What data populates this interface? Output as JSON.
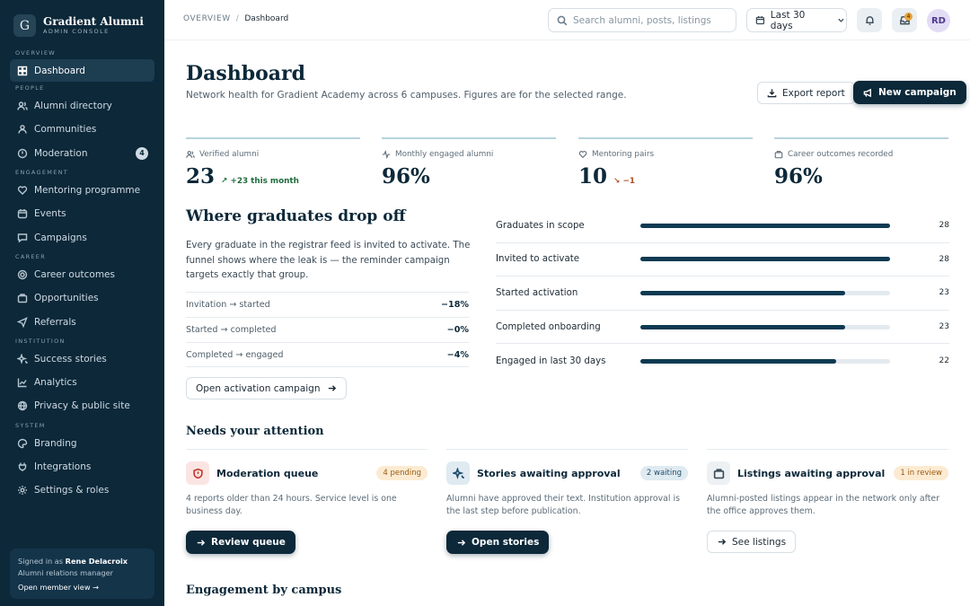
{
  "brand": {
    "logo_letter": "G",
    "name": "Gradient Alumni",
    "subtitle": "ADMIN CONSOLE"
  },
  "sidebar": {
    "sections": [
      {
        "title": "OVERVIEW",
        "items": [
          {
            "label": "Dashboard",
            "icon": "grid-icon",
            "active": true
          }
        ]
      },
      {
        "title": "PEOPLE",
        "items": [
          {
            "label": "Alumni directory",
            "icon": "users-icon"
          },
          {
            "label": "Communities",
            "icon": "community-icon"
          },
          {
            "label": "Moderation",
            "icon": "alert-circle-icon",
            "count": "4"
          }
        ]
      },
      {
        "title": "ENGAGEMENT",
        "items": [
          {
            "label": "Mentoring programme",
            "icon": "heart-icon"
          },
          {
            "label": "Events",
            "icon": "calendar-icon"
          },
          {
            "label": "Campaigns",
            "icon": "message-icon"
          }
        ]
      },
      {
        "title": "CAREER",
        "items": [
          {
            "label": "Career outcomes",
            "icon": "target-icon"
          },
          {
            "label": "Opportunities",
            "icon": "briefcase-icon"
          },
          {
            "label": "Referrals",
            "icon": "send-icon"
          }
        ]
      },
      {
        "title": "INSTITUTION",
        "items": [
          {
            "label": "Success stories",
            "icon": "sparkles-icon"
          },
          {
            "label": "Analytics",
            "icon": "chart-icon"
          },
          {
            "label": "Privacy & public site",
            "icon": "globe-icon"
          }
        ]
      },
      {
        "title": "SYSTEM",
        "items": [
          {
            "label": "Branding",
            "icon": "palette-icon"
          },
          {
            "label": "Integrations",
            "icon": "plug-icon"
          },
          {
            "label": "Settings & roles",
            "icon": "gear-icon"
          }
        ]
      }
    ],
    "user": {
      "signed_in_prefix": "Signed in as",
      "name": "Rene Delacroix",
      "role": "Alumni relations manager",
      "link": "Open member view →"
    }
  },
  "topbar": {
    "breadcrumb": {
      "root": "OVERVIEW",
      "separator": "/",
      "current": "Dashboard"
    },
    "search_placeholder": "Search alumni, posts, listings",
    "date_range": "Last 30 days",
    "inbox_count": "4",
    "avatar_initials": "RD"
  },
  "header": {
    "title": "Dashboard",
    "subtitle": "Network health for Gradient Academy across 6 campuses. Figures are for the selected range.",
    "export_label": "Export report",
    "new_campaign_label": "New campaign"
  },
  "kpis": [
    {
      "label": "Verified alumni",
      "value": "23",
      "delta": "↗ +23 this month",
      "trend": "up",
      "icon": "users-icon"
    },
    {
      "label": "Monthly engaged alumni",
      "value": "96%",
      "delta": "",
      "trend": "",
      "icon": "activity-icon"
    },
    {
      "label": "Mentoring pairs",
      "value": "10",
      "delta": "↘ −1",
      "trend": "down",
      "icon": "heart-icon"
    },
    {
      "label": "Career outcomes recorded",
      "value": "96%",
      "delta": "",
      "trend": "",
      "icon": "briefcase-icon"
    }
  ],
  "dropoff": {
    "title": "Where graduates drop off",
    "description": "Every graduate in the registrar feed is invited to activate. The funnel shows where the leak is — the reminder campaign targets exactly that group.",
    "rows": [
      {
        "label": "Invitation → started",
        "value": "−18%"
      },
      {
        "label": "Started → completed",
        "value": "−0%"
      },
      {
        "label": "Completed → engaged",
        "value": "−4%"
      }
    ],
    "cta": "Open activation campaign"
  },
  "funnel": {
    "max": 28,
    "rows": [
      {
        "label": "Graduates in scope",
        "value": 28
      },
      {
        "label": "Invited to activate",
        "value": 28
      },
      {
        "label": "Started activation",
        "value": 23
      },
      {
        "label": "Completed onboarding",
        "value": 23
      },
      {
        "label": "Engaged in last 30 days",
        "value": 22
      }
    ]
  },
  "attention": {
    "title": "Needs your attention",
    "cards": [
      {
        "title": "Moderation queue",
        "badge": "4 pending",
        "body": "4 reports older than 24 hours. Service level is one business day.",
        "button": "Review queue",
        "icon": "shield-icon",
        "accent": "#c0392b",
        "icon_bg": "#fbe5e3",
        "badge_bg": "#fcebd2",
        "badge_color": "#9a5a12",
        "primary": true
      },
      {
        "title": "Stories awaiting approval",
        "badge": "2 waiting",
        "body": "Alumni have approved their text. Institution approval is the last step before publication.",
        "button": "Open stories",
        "icon": "sparkles-icon",
        "accent": "#1e4d6b",
        "icon_bg": "#dfeaf1",
        "badge_bg": "#dfeaf1",
        "badge_color": "#1e4d6b",
        "primary": true
      },
      {
        "title": "Listings awaiting approval",
        "badge": "1 in review",
        "body": "Alumni-posted listings appear in the network only after the office approves them.",
        "button": "See listings",
        "icon": "briefcase-icon",
        "accent": "#3a4a56",
        "icon_bg": "#edf1f4",
        "badge_bg": "#fcebd2",
        "badge_color": "#9a5a12",
        "primary": false
      }
    ]
  },
  "engagement_title": "Engagement by campus"
}
